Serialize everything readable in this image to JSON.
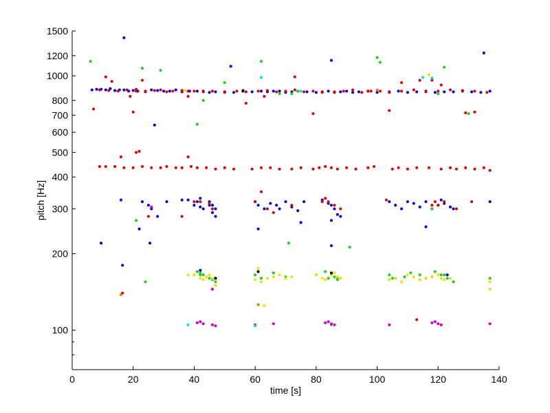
{
  "chart_data": {
    "type": "scatter",
    "title": "",
    "xlabel": "time [s]",
    "ylabel": "pitch [Hz]",
    "xlim": [
      0,
      140
    ],
    "ylim": [
      70,
      1500
    ],
    "yscale": "log",
    "grid": false,
    "legend": "none",
    "x_ticks": [
      "0",
      "20",
      "40",
      "60",
      "80",
      "100",
      "120",
      "140"
    ],
    "x_tick_values": [
      0,
      20,
      40,
      60,
      80,
      100,
      120,
      140
    ],
    "y_ticks": [
      "100",
      "200",
      "300",
      "400",
      "500",
      "600",
      "700",
      "800",
      "1000",
      "1200",
      "1500"
    ],
    "y_tick_values": [
      100,
      200,
      300,
      400,
      500,
      600,
      700,
      800,
      1000,
      1200,
      1500
    ],
    "colors": {
      "blue": "#0000e0",
      "red": "#e00000",
      "green": "#22cc22",
      "yellow": "#f0e000",
      "magenta": "#d000d0",
      "cyan": "#00e0e0",
      "orange": "#e08000",
      "black": "#000000"
    },
    "series": [
      {
        "color": "#0000e0",
        "x": [
          6.5,
          8,
          9.5,
          11,
          12.5,
          14,
          15.5,
          17,
          18.5,
          20,
          21.5,
          24,
          26,
          28,
          30,
          32,
          34,
          36,
          38.5,
          41,
          43,
          45,
          47,
          50,
          53,
          56,
          59,
          62,
          64,
          66,
          68,
          70,
          72,
          74,
          77,
          80,
          82,
          84,
          86,
          88,
          90,
          92,
          94,
          97,
          100,
          104,
          107,
          110,
          113,
          116,
          119,
          122,
          125,
          128,
          131,
          134,
          137,
          17,
          52,
          85,
          135,
          27,
          38,
          42,
          45,
          46,
          47,
          16,
          23,
          25,
          26,
          28,
          31,
          36,
          40,
          41,
          42,
          43,
          45,
          46,
          47,
          60,
          61,
          63,
          65,
          67,
          68,
          70,
          72,
          74,
          76,
          82,
          84,
          85,
          86,
          87,
          88,
          104,
          106,
          108,
          110,
          112,
          114,
          116,
          118,
          120,
          121,
          122,
          124,
          125,
          137,
          22,
          61,
          75,
          85,
          116,
          9.5,
          25.5,
          16.5,
          42,
          85,
          123
        ],
        "y": [
          880,
          885,
          885,
          880,
          890,
          875,
          880,
          880,
          870,
          875,
          870,
          865,
          880,
          875,
          870,
          870,
          880,
          865,
          870,
          870,
          870,
          860,
          865,
          865,
          860,
          875,
          865,
          870,
          865,
          870,
          870,
          860,
          865,
          870,
          865,
          860,
          865,
          870,
          860,
          865,
          870,
          860,
          865,
          870,
          860,
          865,
          870,
          860,
          865,
          870,
          860,
          865,
          865,
          870,
          865,
          860,
          870,
          1410,
          1090,
          1150,
          1230,
          640,
          325,
          330,
          320,
          310,
          300,
          325,
          320,
          310,
          300,
          280,
          320,
          325,
          310,
          320,
          305,
          300,
          310,
          290,
          280,
          320,
          310,
          300,
          315,
          310,
          300,
          320,
          305,
          295,
          320,
          325,
          315,
          310,
          300,
          285,
          280,
          320,
          310,
          300,
          320,
          315,
          305,
          320,
          300,
          310,
          325,
          315,
          305,
          300,
          320,
          250,
          250,
          265,
          270,
          255,
          220,
          220,
          180,
          172,
          215,
          165
        ],
        "name": ""
      },
      {
        "color": "#e00000",
        "x": [
          9,
          12,
          15,
          18,
          21,
          24,
          27,
          29,
          31,
          33,
          36,
          38,
          40,
          43,
          46,
          50,
          54,
          57,
          61,
          64,
          67,
          70,
          73,
          76,
          79,
          82,
          86,
          89,
          92,
          95,
          98,
          101,
          104,
          108,
          112,
          116,
          120,
          124,
          128,
          132,
          136,
          7,
          11,
          13,
          19,
          20,
          21,
          23,
          38,
          57,
          63,
          73,
          79,
          86,
          97,
          104,
          108,
          114,
          118,
          121,
          129,
          132,
          9,
          11,
          14,
          17,
          20,
          23,
          26,
          29,
          31,
          34,
          36,
          39,
          41,
          44,
          47,
          50,
          53,
          59,
          62,
          65,
          68,
          72,
          75,
          79,
          81,
          83,
          85,
          87,
          90,
          93,
          97,
          99,
          105,
          107,
          110,
          113,
          117,
          121,
          124,
          126,
          129,
          132,
          135,
          137,
          22,
          38,
          16,
          21,
          25,
          36,
          40,
          42,
          45,
          46,
          60,
          62,
          64,
          66,
          72,
          82,
          83,
          84,
          86,
          88,
          103,
          113,
          118,
          119,
          120,
          121,
          122,
          126,
          131,
          16.5
        ],
        "y": [
          880,
          875,
          870,
          880,
          885,
          870,
          875,
          880,
          865,
          870,
          875,
          870,
          870,
          865,
          870,
          860,
          870,
          865,
          870,
          875,
          865,
          870,
          880,
          865,
          870,
          860,
          865,
          870,
          880,
          860,
          870,
          870,
          860,
          870,
          880,
          865,
          870,
          880,
          875,
          870,
          860,
          740,
          990,
          950,
          830,
          720,
          870,
          960,
          830,
          780,
          830,
          990,
          710,
          860,
          870,
          730,
          940,
          960,
          960,
          920,
          715,
          720,
          440,
          440,
          440,
          435,
          435,
          440,
          435,
          435,
          440,
          435,
          435,
          440,
          435,
          435,
          430,
          435,
          430,
          430,
          435,
          435,
          430,
          430,
          435,
          430,
          435,
          440,
          435,
          430,
          435,
          430,
          435,
          440,
          430,
          435,
          430,
          435,
          435,
          430,
          435,
          430,
          435,
          430,
          435,
          425,
          505,
          480,
          480,
          500,
          280,
          280,
          320,
          320,
          315,
          300,
          320,
          350,
          300,
          290,
          310,
          320,
          330,
          320,
          310,
          300,
          325,
          110,
          310,
          320,
          310,
          105,
          320,
          300,
          320,
          140
        ],
        "name": ""
      },
      {
        "color": "#22cc22",
        "x": [
          6,
          23,
          29,
          41,
          43,
          50,
          62,
          68,
          72,
          74,
          100,
          101,
          120,
          122,
          130,
          41,
          42,
          43,
          45,
          46,
          47,
          60,
          62,
          66,
          70,
          80,
          83,
          84,
          85,
          86,
          87,
          104,
          106,
          109,
          111,
          114,
          116,
          118,
          119,
          121,
          123,
          125,
          24,
          42,
          47,
          87,
          105,
          122,
          137,
          21,
          71,
          91,
          85,
          118
        ],
        "y": [
          1140,
          1070,
          1050,
          645,
          800,
          940,
          1140,
          850,
          850,
          870,
          1180,
          1130,
          850,
          1080,
          710,
          170,
          168,
          165,
          160,
          158,
          155,
          165,
          160,
          168,
          162,
          165,
          170,
          160,
          165,
          162,
          158,
          165,
          160,
          162,
          168,
          165,
          160,
          162,
          170,
          165,
          160,
          155,
          155,
          165,
          160,
          160,
          160,
          165,
          160,
          270,
          220,
          212,
          105,
          300
        ],
        "name": ""
      },
      {
        "color": "#f0e000",
        "x": [
          40,
          42,
          43,
          45,
          46,
          47,
          60,
          62,
          64,
          66,
          68,
          70,
          72,
          80,
          82,
          83,
          85,
          86,
          87,
          88,
          104,
          106,
          108,
          110,
          112,
          114,
          116,
          118,
          120,
          121,
          122,
          124,
          137,
          38,
          44,
          46,
          61,
          63,
          117,
          37,
          137
        ],
        "y": [
          165,
          160,
          158,
          165,
          160,
          150,
          158,
          155,
          160,
          162,
          165,
          160,
          162,
          165,
          160,
          158,
          165,
          168,
          162,
          160,
          158,
          160,
          155,
          165,
          162,
          158,
          160,
          162,
          165,
          160,
          158,
          160,
          155,
          165,
          162,
          145,
          175,
          125,
          1010,
          875,
          145
        ],
        "name": ""
      },
      {
        "color": "#d000d0",
        "x": [
          41,
          42,
          43,
          46,
          47,
          60,
          66,
          83,
          84,
          85,
          86,
          104,
          118,
          119,
          120,
          121,
          137,
          26,
          46
        ],
        "y": [
          107,
          108,
          106,
          105,
          104,
          105,
          106,
          107,
          108,
          106,
          105,
          105,
          107,
          108,
          106,
          105,
          106,
          305,
          145
        ],
        "name": ""
      },
      {
        "color": "#00e0e0",
        "x": [
          38,
          60,
          62,
          75,
          115,
          118
        ],
        "y": [
          105,
          104,
          985,
          870,
          985,
          980
        ],
        "name": ""
      },
      {
        "color": "#e08000",
        "x": [
          16,
          61,
          100
        ],
        "y": [
          138,
          126,
          880
        ],
        "name": ""
      },
      {
        "color": "#000000",
        "x": [
          56,
          61,
          85,
          47
        ],
        "y": [
          870,
          170,
          168,
          160
        ],
        "name": ""
      }
    ]
  }
}
